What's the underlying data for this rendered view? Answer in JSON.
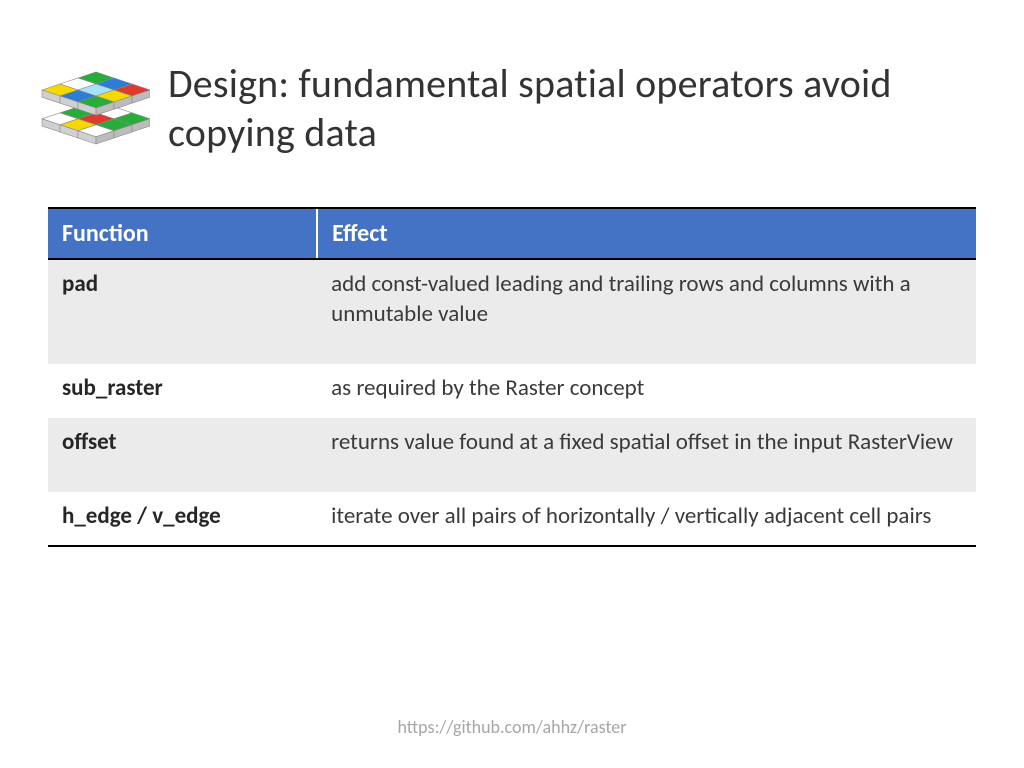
{
  "title": "Design: fundamental spatial operators avoid copying data",
  "footer_url": "https://github.com/ahhz/raster",
  "table": {
    "type": "table",
    "header_bg": "#4472c4",
    "header_fg": "#ffffff",
    "row_shade_bg": "#ebebeb",
    "border_color": "#000000",
    "columns": [
      "Function",
      "Effect"
    ],
    "col_widths_pct": [
      29,
      71
    ],
    "header_fontsize": 24,
    "body_fontsize": 23,
    "rows": [
      {
        "fn": "pad",
        "effect": "add const-valued leading and trailing rows and columns with a unmutable value",
        "shaded": true,
        "taller": true
      },
      {
        "fn": "sub_raster",
        "effect": "as required by the Raster concept",
        "shaded": false,
        "taller": false
      },
      {
        "fn": "offset",
        "effect": "returns value found at a fixed spatial offset in the input RasterView",
        "shaded": true,
        "taller": true
      },
      {
        "fn": "h_edge / v_edge",
        "effect": "iterate over all pairs of horizontally / vertically adjacent cell pairs",
        "shaded": false,
        "taller": false
      }
    ]
  },
  "logo": {
    "colors": {
      "green": "#27ae3a",
      "yellow": "#f5d800",
      "blue": "#2b7dd6",
      "cyan": "#a8e1f7",
      "red": "#e03a2f",
      "white": "#ffffff",
      "edge": "#8a8a8a"
    }
  }
}
